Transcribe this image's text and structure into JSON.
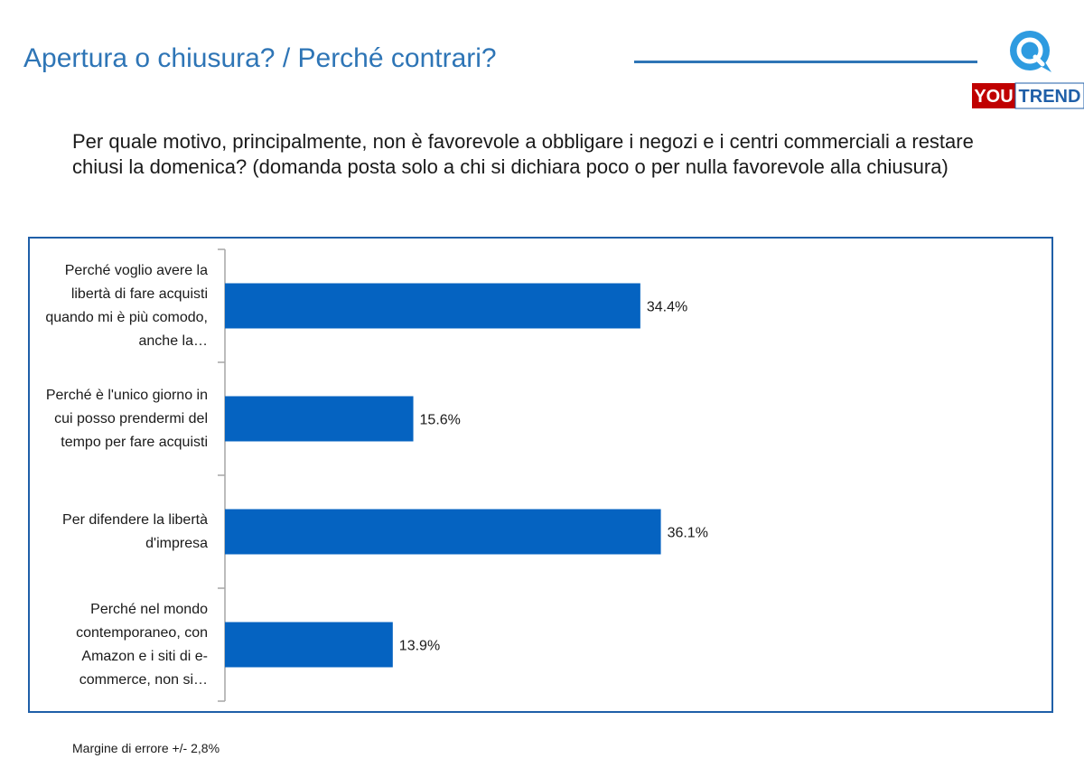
{
  "header": {
    "title": "Apertura o chiusura? / Perché contrari?"
  },
  "logo": {
    "you": "YOU",
    "trend": "TREND",
    "icon": "speech-bubble-q-icon",
    "colors": {
      "you_bg": "#c00000",
      "trend_bg": "#ffffff",
      "trend_text": "#1f5fa8",
      "bubble": "#2e9be0"
    }
  },
  "question": "Per quale motivo, principalmente, non è favorevole a obbligare i negozi e i centri commerciali a restare chiusi la domenica? (domanda posta solo a chi si dichiara poco o per nulla favorevole alla chiusura)",
  "chart_data": {
    "type": "bar",
    "orientation": "horizontal",
    "categories": [
      "Perché voglio avere la libertà di fare acquisti quando mi è più comodo, anche la…",
      "Perché è l'unico giorno in cui posso prendermi del tempo per fare acquisti",
      "Per difendere la libertà d'impresa",
      "Perché nel mondo contemporaneo, con Amazon e i siti di e-commerce, non si…"
    ],
    "values": [
      34.4,
      15.6,
      36.1,
      13.9
    ],
    "value_labels": [
      "34.4%",
      "15.6%",
      "36.1%",
      "13.9%"
    ],
    "unit": "%",
    "xlim": [
      0,
      68
    ],
    "bar_color": "#0563c1",
    "grid": false,
    "legend": false
  },
  "footnote": "Margine di errore +/- 2,8%",
  "colors": {
    "title": "#2e75b6",
    "frame": "#1f5fa8",
    "axis": "#a6a6a6"
  }
}
